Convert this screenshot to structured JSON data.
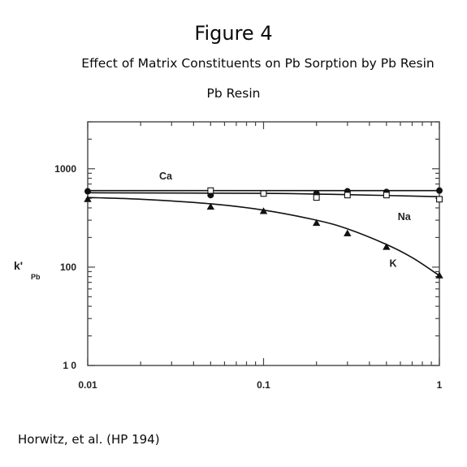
{
  "header": {
    "figure_label": "Figure 4",
    "subtitle": "Effect of Matrix Constituents on Pb Sorption by Pb Resin",
    "resin_label": "Pb Resin"
  },
  "footer": {
    "citation": "Horwitz, et al. (HP 194)"
  },
  "chart_data": {
    "type": "line",
    "title": "Figure 4",
    "subtitle": "Effect of Matrix Constituents on Pb Sorption by Pb Resin",
    "plot_title": "Pb Resin",
    "xlabel": "",
    "ylabel": "k'",
    "ylabel_sub": "Pb",
    "xscale": "log",
    "yscale": "log",
    "xlim": [
      0.01,
      1
    ],
    "ylim": [
      10,
      3000
    ],
    "x_ticks": [
      0.01,
      0.1,
      1
    ],
    "x_tick_labels": [
      "0.01",
      "0.1",
      "1"
    ],
    "y_ticks": [
      10,
      100,
      1000
    ],
    "y_tick_labels": [
      "1 0",
      "100",
      "1000"
    ],
    "grid": false,
    "legend": "inline labels",
    "series": [
      {
        "name": "Ca",
        "marker": "filled-circle",
        "x": [
          0.01,
          0.05,
          0.1,
          0.2,
          0.3,
          0.5,
          1
        ],
        "y": [
          590,
          540,
          560,
          560,
          590,
          580,
          600
        ]
      },
      {
        "name": "Na",
        "marker": "open-square",
        "x": [
          0.05,
          0.1,
          0.2,
          0.3,
          0.5,
          1
        ],
        "y": [
          600,
          560,
          510,
          540,
          540,
          490
        ]
      },
      {
        "name": "K",
        "marker": "filled-triangle",
        "x": [
          0.01,
          0.05,
          0.1,
          0.2,
          0.3,
          0.5,
          1
        ],
        "y": [
          490,
          410,
          370,
          280,
          220,
          160,
          82
        ]
      }
    ],
    "curves": {
      "Ca": {
        "x": [
          0.01,
          1
        ],
        "y": [
          600,
          600
        ]
      },
      "Na": {
        "x": [
          0.01,
          0.1,
          0.3,
          1
        ],
        "y": [
          570,
          562,
          545,
          520
        ]
      },
      "K": {
        "x": [
          0.01,
          0.02,
          0.05,
          0.1,
          0.2,
          0.3,
          0.5,
          0.7,
          1
        ],
        "y": [
          510,
          490,
          440,
          380,
          300,
          245,
          170,
          125,
          82
        ]
      }
    },
    "colors": {
      "ink": "#111111",
      "frame": "#444444"
    }
  }
}
